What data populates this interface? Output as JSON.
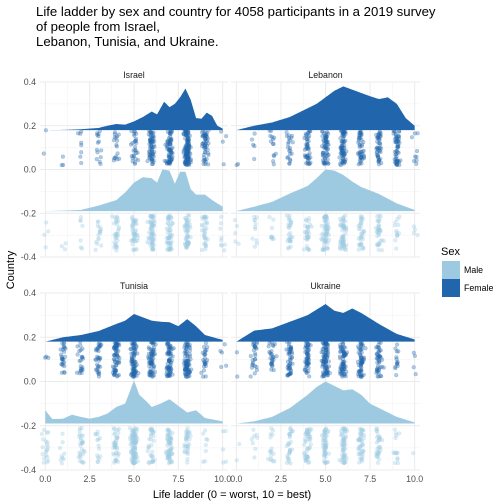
{
  "chart_data": {
    "type": "density+jitter",
    "title_lines": [
      "Life ladder by sex and country for 4058 participants in a 2019 survey",
      "of people from Israel,",
      "Lebanon, Tunisia, and Ukraine."
    ],
    "xlabel": "Life ladder (0 = worst, 10 = best)",
    "ylabel": "Country",
    "xlim": [
      -0.3,
      10.3
    ],
    "ylim": [
      -0.4,
      0.4
    ],
    "x_ticks": [
      0,
      2.5,
      5,
      7.5,
      10
    ],
    "x_tick_labels": [
      "0.0",
      "2.5",
      "5.0",
      "7.5",
      "10.0"
    ],
    "y_ticks": [
      -0.4,
      -0.2,
      0.0,
      0.2,
      0.4
    ],
    "y_tick_labels": [
      "-0.4",
      "-0.2",
      "0.0",
      "0.2",
      "0.4"
    ],
    "grid": true,
    "legend": {
      "title": "Sex",
      "position": "right",
      "entries": [
        {
          "label": "Male",
          "color": "#9ecae1"
        },
        {
          "label": "Female",
          "color": "#2166ac"
        }
      ]
    },
    "series_colors": {
      "Male": "#9ecae1",
      "Female": "#2166ac"
    },
    "density_baselines": {
      "Female": 0.18,
      "Male": -0.19
    },
    "jitter_bands": {
      "Female": [
        0.02,
        0.18
      ],
      "Male": [
        -0.37,
        -0.21
      ]
    },
    "panels": [
      {
        "name": "Israel",
        "female_density": [
          [
            0,
            0.18
          ],
          [
            1,
            0.181
          ],
          [
            2,
            0.184
          ],
          [
            3,
            0.19
          ],
          [
            3.5,
            0.2
          ],
          [
            4,
            0.208
          ],
          [
            4.5,
            0.205
          ],
          [
            5,
            0.22
          ],
          [
            5.5,
            0.24
          ],
          [
            6,
            0.265
          ],
          [
            6.3,
            0.252
          ],
          [
            6.7,
            0.31
          ],
          [
            7,
            0.285
          ],
          [
            7.3,
            0.3
          ],
          [
            7.6,
            0.33
          ],
          [
            7.9,
            0.37
          ],
          [
            8.2,
            0.318
          ],
          [
            8.5,
            0.235
          ],
          [
            8.8,
            0.232
          ],
          [
            9.1,
            0.26
          ],
          [
            9.4,
            0.245
          ],
          [
            9.7,
            0.2
          ],
          [
            10,
            0.187
          ]
        ],
        "male_density": [
          [
            0,
            -0.19
          ],
          [
            1,
            -0.188
          ],
          [
            2,
            -0.185
          ],
          [
            3,
            -0.165
          ],
          [
            4,
            -0.14
          ],
          [
            4.5,
            -0.105
          ],
          [
            5,
            -0.06
          ],
          [
            5.5,
            -0.035
          ],
          [
            6,
            -0.04
          ],
          [
            6.3,
            -0.06
          ],
          [
            6.6,
            0.0
          ],
          [
            7,
            -0.005
          ],
          [
            7.3,
            -0.065
          ],
          [
            7.6,
            -0.01
          ],
          [
            7.9,
            -0.01
          ],
          [
            8.2,
            -0.09
          ],
          [
            8.5,
            -0.115
          ],
          [
            9,
            -0.115
          ],
          [
            9.5,
            -0.145
          ],
          [
            10,
            -0.17
          ]
        ],
        "female_points": 400,
        "male_points": 320
      },
      {
        "name": "Lebanon",
        "female_density": [
          [
            0,
            0.18
          ],
          [
            1,
            0.2
          ],
          [
            2,
            0.215
          ],
          [
            3,
            0.24
          ],
          [
            4,
            0.28
          ],
          [
            4.5,
            0.3
          ],
          [
            5,
            0.33
          ],
          [
            5.5,
            0.36
          ],
          [
            6,
            0.38
          ],
          [
            6.5,
            0.365
          ],
          [
            7,
            0.35
          ],
          [
            7.5,
            0.335
          ],
          [
            8,
            0.322
          ],
          [
            8.5,
            0.33
          ],
          [
            9,
            0.3
          ],
          [
            9.5,
            0.235
          ],
          [
            10,
            0.2
          ]
        ],
        "male_density": [
          [
            0,
            -0.19
          ],
          [
            1,
            -0.17
          ],
          [
            2,
            -0.148
          ],
          [
            3,
            -0.11
          ],
          [
            4,
            -0.075
          ],
          [
            4.5,
            -0.04
          ],
          [
            5,
            0.0
          ],
          [
            5.5,
            -0.005
          ],
          [
            6,
            -0.025
          ],
          [
            6.5,
            -0.055
          ],
          [
            7,
            -0.08
          ],
          [
            8,
            -0.112
          ],
          [
            9,
            -0.155
          ],
          [
            10,
            -0.185
          ]
        ],
        "female_points": 380,
        "male_points": 300
      },
      {
        "name": "Tunisia",
        "female_density": [
          [
            0,
            0.18
          ],
          [
            1,
            0.2
          ],
          [
            2,
            0.21
          ],
          [
            3,
            0.228
          ],
          [
            4,
            0.26
          ],
          [
            4.5,
            0.275
          ],
          [
            5,
            0.305
          ],
          [
            5.5,
            0.29
          ],
          [
            6,
            0.275
          ],
          [
            6.5,
            0.27
          ],
          [
            7,
            0.268
          ],
          [
            7.5,
            0.25
          ],
          [
            8,
            0.282
          ],
          [
            8.5,
            0.25
          ],
          [
            9,
            0.21
          ],
          [
            10,
            0.188
          ]
        ],
        "male_density": [
          [
            0,
            -0.13
          ],
          [
            0.4,
            -0.17
          ],
          [
            1,
            -0.168
          ],
          [
            1.5,
            -0.15
          ],
          [
            2,
            -0.16
          ],
          [
            2.5,
            -0.168
          ],
          [
            3,
            -0.16
          ],
          [
            3.5,
            -0.145
          ],
          [
            4,
            -0.115
          ],
          [
            4.5,
            -0.1
          ],
          [
            5,
            0.005
          ],
          [
            5.3,
            -0.06
          ],
          [
            5.7,
            -0.09
          ],
          [
            6,
            -0.115
          ],
          [
            6.5,
            -0.1
          ],
          [
            7,
            -0.08
          ],
          [
            7.5,
            -0.11
          ],
          [
            8,
            -0.14
          ],
          [
            8.5,
            -0.13
          ],
          [
            9,
            -0.165
          ],
          [
            10,
            -0.18
          ]
        ],
        "female_points": 480,
        "male_points": 360
      },
      {
        "name": "Ukraine",
        "female_density": [
          [
            0,
            0.18
          ],
          [
            0.5,
            0.205
          ],
          [
            1,
            0.23
          ],
          [
            2,
            0.24
          ],
          [
            3,
            0.27
          ],
          [
            4,
            0.3
          ],
          [
            4.6,
            0.33
          ],
          [
            5,
            0.35
          ],
          [
            5.5,
            0.32
          ],
          [
            6,
            0.31
          ],
          [
            6.5,
            0.33
          ],
          [
            7,
            0.31
          ],
          [
            8,
            0.26
          ],
          [
            9,
            0.215
          ],
          [
            10,
            0.19
          ]
        ],
        "male_density": [
          [
            0,
            -0.19
          ],
          [
            1,
            -0.18
          ],
          [
            2,
            -0.16
          ],
          [
            3,
            -0.12
          ],
          [
            4,
            -0.06
          ],
          [
            4.5,
            -0.025
          ],
          [
            5,
            0.0
          ],
          [
            5.5,
            -0.02
          ],
          [
            6,
            -0.04
          ],
          [
            6.5,
            -0.035
          ],
          [
            7,
            -0.06
          ],
          [
            7.5,
            -0.1
          ],
          [
            8,
            -0.12
          ],
          [
            9,
            -0.16
          ],
          [
            10,
            -0.185
          ]
        ],
        "female_points": 440,
        "male_points": 300
      }
    ]
  }
}
